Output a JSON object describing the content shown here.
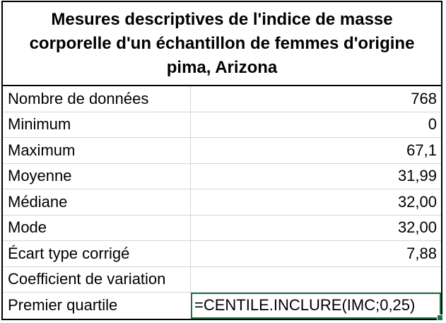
{
  "title_lines": [
    "Mesures descriptives de l'indice de masse",
    "corporelle d'un échantillon de femmes d'origine",
    "pima, Arizona"
  ],
  "rows": [
    {
      "label": "Nombre de données",
      "value": "768"
    },
    {
      "label": "Minimum",
      "value": "0"
    },
    {
      "label": "Maximum",
      "value": "67,1"
    },
    {
      "label": "Moyenne",
      "value": "31,99"
    },
    {
      "label": "Médiane",
      "value": "32,00"
    },
    {
      "label": "Mode",
      "value": "32,00"
    },
    {
      "label": "Écart type corrigé",
      "value": "7,88"
    },
    {
      "label": "Coefficient de variation",
      "value": ""
    },
    {
      "label": "Premier quartile",
      "value": "=CENTILE.INCLURE(IMC;0,25)"
    }
  ],
  "selection": {
    "active_row": 8,
    "border_color": "#217346"
  }
}
